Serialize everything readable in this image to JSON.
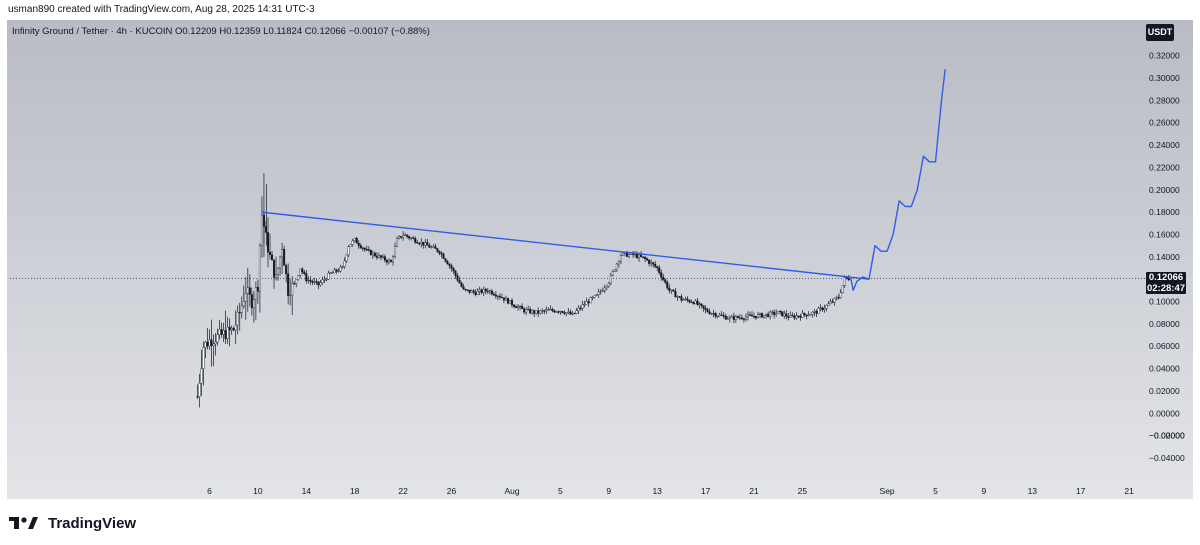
{
  "header": {
    "text": "usman890 created with TradingView.com, Aug 28, 2025 14:31 UTC-3"
  },
  "legend": {
    "text": "Infinity Ground / Tether · 4h · KUCOIN  O0.12209  H0.12359  L0.11824  C0.12066  −0.00107 (−0.88%)"
  },
  "currency": "USDT",
  "last_price": {
    "value": "0.12066",
    "countdown": "02:28:47"
  },
  "brand": {
    "name": "TradingView",
    "icon": "tradingview-logo-icon"
  },
  "colors": {
    "candle": "#131722",
    "trendline": "#2f5ce8",
    "projection": "#2f5ce8",
    "background": "#c4c7ce"
  },
  "chart_data": {
    "type": "candlestick",
    "symbol": "Infinity Ground / Tether",
    "interval": "4h",
    "exchange": "KUCOIN",
    "ylim": [
      -0.05,
      0.32
    ],
    "y_ticks": [
      "0.32000",
      "0.30000",
      "0.28000",
      "0.26000",
      "0.24000",
      "0.22000",
      "0.20000",
      "0.18000",
      "0.16000",
      "0.14000",
      "0.12000",
      "0.10000",
      "0.08000",
      "0.06000",
      "0.04000",
      "0.02000",
      "0.00000",
      "−0.00000",
      "−0.02000",
      "−0.04000"
    ],
    "x_ticks": [
      "6",
      "10",
      "14",
      "18",
      "22",
      "26",
      "Aug",
      "5",
      "9",
      "13",
      "17",
      "21",
      "25",
      "Sep",
      "5",
      "9",
      "13",
      "17",
      "21"
    ],
    "x_tick_days": [
      -25,
      -21,
      -17,
      -13,
      -9,
      -5,
      0,
      4,
      8,
      12,
      16,
      20,
      24,
      31,
      35,
      39,
      43,
      47,
      51
    ],
    "y_tick_values": [
      0.32,
      0.3,
      0.28,
      0.26,
      0.24,
      0.22,
      0.2,
      0.18,
      0.16,
      0.14,
      0.12,
      0.1,
      0.08,
      0.06,
      0.04,
      0.02,
      0.0,
      -0.0,
      -0.02,
      -0.04
    ],
    "last_close": 0.12066,
    "price_path": [
      {
        "x": -26,
        "y": 0.015
      },
      {
        "x": -25.5,
        "y": 0.06
      },
      {
        "x": -25,
        "y": 0.065
      },
      {
        "x": -24,
        "y": 0.07
      },
      {
        "x": -23,
        "y": 0.075
      },
      {
        "x": -22.5,
        "y": 0.09
      },
      {
        "x": -22,
        "y": 0.11
      },
      {
        "x": -21.5,
        "y": 0.1
      },
      {
        "x": -21,
        "y": 0.115
      },
      {
        "x": -20.7,
        "y": 0.18
      },
      {
        "x": -20.3,
        "y": 0.155
      },
      {
        "x": -20,
        "y": 0.14
      },
      {
        "x": -19.5,
        "y": 0.12
      },
      {
        "x": -19,
        "y": 0.15
      },
      {
        "x": -18.5,
        "y": 0.11
      },
      {
        "x": -18,
        "y": 0.115
      },
      {
        "x": -17.5,
        "y": 0.13
      },
      {
        "x": -17,
        "y": 0.12
      },
      {
        "x": -16,
        "y": 0.115
      },
      {
        "x": -15,
        "y": 0.125
      },
      {
        "x": -14,
        "y": 0.13
      },
      {
        "x": -13.5,
        "y": 0.15
      },
      {
        "x": -13,
        "y": 0.155
      },
      {
        "x": -12,
        "y": 0.145
      },
      {
        "x": -11,
        "y": 0.14
      },
      {
        "x": -10,
        "y": 0.135
      },
      {
        "x": -9.5,
        "y": 0.155
      },
      {
        "x": -9,
        "y": 0.16
      },
      {
        "x": -8,
        "y": 0.155
      },
      {
        "x": -7,
        "y": 0.15
      },
      {
        "x": -6,
        "y": 0.145
      },
      {
        "x": -5,
        "y": 0.13
      },
      {
        "x": -4,
        "y": 0.11
      },
      {
        "x": -3,
        "y": 0.108
      },
      {
        "x": -2,
        "y": 0.11
      },
      {
        "x": -1,
        "y": 0.105
      },
      {
        "x": 0,
        "y": 0.098
      },
      {
        "x": 1,
        "y": 0.092
      },
      {
        "x": 2,
        "y": 0.09
      },
      {
        "x": 3,
        "y": 0.092
      },
      {
        "x": 4,
        "y": 0.092
      },
      {
        "x": 5,
        "y": 0.088
      },
      {
        "x": 6,
        "y": 0.098
      },
      {
        "x": 7,
        "y": 0.105
      },
      {
        "x": 8,
        "y": 0.118
      },
      {
        "x": 9,
        "y": 0.142
      },
      {
        "x": 10,
        "y": 0.142
      },
      {
        "x": 11,
        "y": 0.138
      },
      {
        "x": 12,
        "y": 0.13
      },
      {
        "x": 13,
        "y": 0.11
      },
      {
        "x": 14,
        "y": 0.102
      },
      {
        "x": 15,
        "y": 0.1
      },
      {
        "x": 16,
        "y": 0.092
      },
      {
        "x": 17,
        "y": 0.088
      },
      {
        "x": 18,
        "y": 0.085
      },
      {
        "x": 19,
        "y": 0.086
      },
      {
        "x": 20,
        "y": 0.087
      },
      {
        "x": 21,
        "y": 0.088
      },
      {
        "x": 22,
        "y": 0.09
      },
      {
        "x": 23,
        "y": 0.086
      },
      {
        "x": 24,
        "y": 0.088
      },
      {
        "x": 25,
        "y": 0.09
      },
      {
        "x": 26,
        "y": 0.096
      },
      {
        "x": 27,
        "y": 0.104
      },
      {
        "x": 27.5,
        "y": 0.12
      },
      {
        "x": 28,
        "y": 0.121
      }
    ],
    "trendline": [
      {
        "x": -20.7,
        "y": 0.18
      },
      {
        "x": 29.5,
        "y": 0.12
      }
    ],
    "projection": [
      {
        "x": 28,
        "y": 0.121
      },
      {
        "x": 28.2,
        "y": 0.11
      },
      {
        "x": 28.5,
        "y": 0.118
      },
      {
        "x": 29,
        "y": 0.122
      },
      {
        "x": 29.5,
        "y": 0.12
      },
      {
        "x": 30,
        "y": 0.15
      },
      {
        "x": 30.5,
        "y": 0.145
      },
      {
        "x": 31,
        "y": 0.145
      },
      {
        "x": 31.5,
        "y": 0.16
      },
      {
        "x": 32,
        "y": 0.19
      },
      {
        "x": 32.5,
        "y": 0.185
      },
      {
        "x": 33,
        "y": 0.185
      },
      {
        "x": 33.5,
        "y": 0.2
      },
      {
        "x": 34,
        "y": 0.23
      },
      {
        "x": 34.5,
        "y": 0.225
      },
      {
        "x": 35,
        "y": 0.225
      },
      {
        "x": 35.5,
        "y": 0.28
      },
      {
        "x": 35.8,
        "y": 0.308
      }
    ]
  }
}
